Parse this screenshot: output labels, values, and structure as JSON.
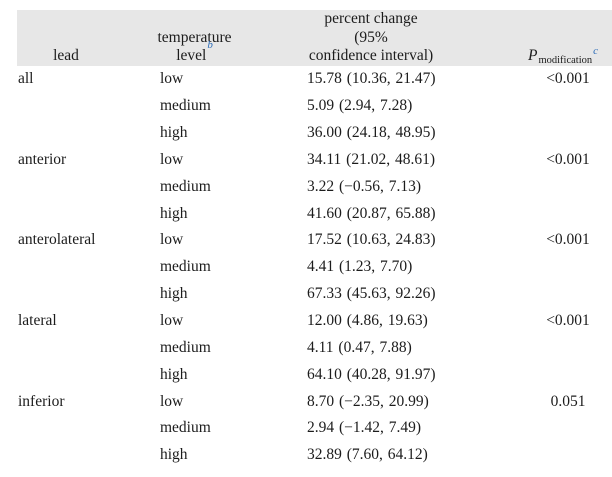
{
  "table": {
    "header": {
      "lead": "lead",
      "temp_line1": "temperature",
      "temp_line2": "level",
      "temp_sup": "b",
      "pct_line1": "percent change (95%",
      "pct_line2": "confidence interval)",
      "p_main": "P",
      "p_sub": "modification",
      "p_sup": "c"
    },
    "rows": [
      {
        "lead": "all",
        "level": "low",
        "pct": "15.78 (10.36, 21.47)",
        "p": "<0.001"
      },
      {
        "lead": "",
        "level": "medium",
        "pct": "5.09 (2.94, 7.28)",
        "p": ""
      },
      {
        "lead": "",
        "level": "high",
        "pct": "36.00 (24.18, 48.95)",
        "p": ""
      },
      {
        "lead": "anterior",
        "level": "low",
        "pct": "34.11 (21.02, 48.61)",
        "p": "<0.001"
      },
      {
        "lead": "",
        "level": "medium",
        "pct": "3.22 (−0.56, 7.13)",
        "p": ""
      },
      {
        "lead": "",
        "level": "high",
        "pct": "41.60 (20.87, 65.88)",
        "p": ""
      },
      {
        "lead": "anterolateral",
        "level": "low",
        "pct": "17.52 (10.63, 24.83)",
        "p": "<0.001"
      },
      {
        "lead": "",
        "level": "medium",
        "pct": "4.41 (1.23, 7.70)",
        "p": ""
      },
      {
        "lead": "",
        "level": "high",
        "pct": "67.33 (45.63, 92.26)",
        "p": ""
      },
      {
        "lead": "lateral",
        "level": "low",
        "pct": "12.00 (4.86, 19.63)",
        "p": "<0.001"
      },
      {
        "lead": "",
        "level": "medium",
        "pct": "4.11 (0.47, 7.88)",
        "p": ""
      },
      {
        "lead": "",
        "level": "high",
        "pct": "64.10 (40.28, 91.97)",
        "p": ""
      },
      {
        "lead": "inferior",
        "level": "low",
        "pct": "8.70 (−2.35, 20.99)",
        "p": "0.051"
      },
      {
        "lead": "",
        "level": "medium",
        "pct": "2.94 (−1.42, 7.49)",
        "p": ""
      },
      {
        "lead": "",
        "level": "high",
        "pct": "32.89 (7.60, 64.12)",
        "p": ""
      }
    ],
    "colors": {
      "header_bg": "#e7e7e7",
      "superscript_blue": "#2e6db8",
      "text": "#1c1c1c"
    }
  }
}
